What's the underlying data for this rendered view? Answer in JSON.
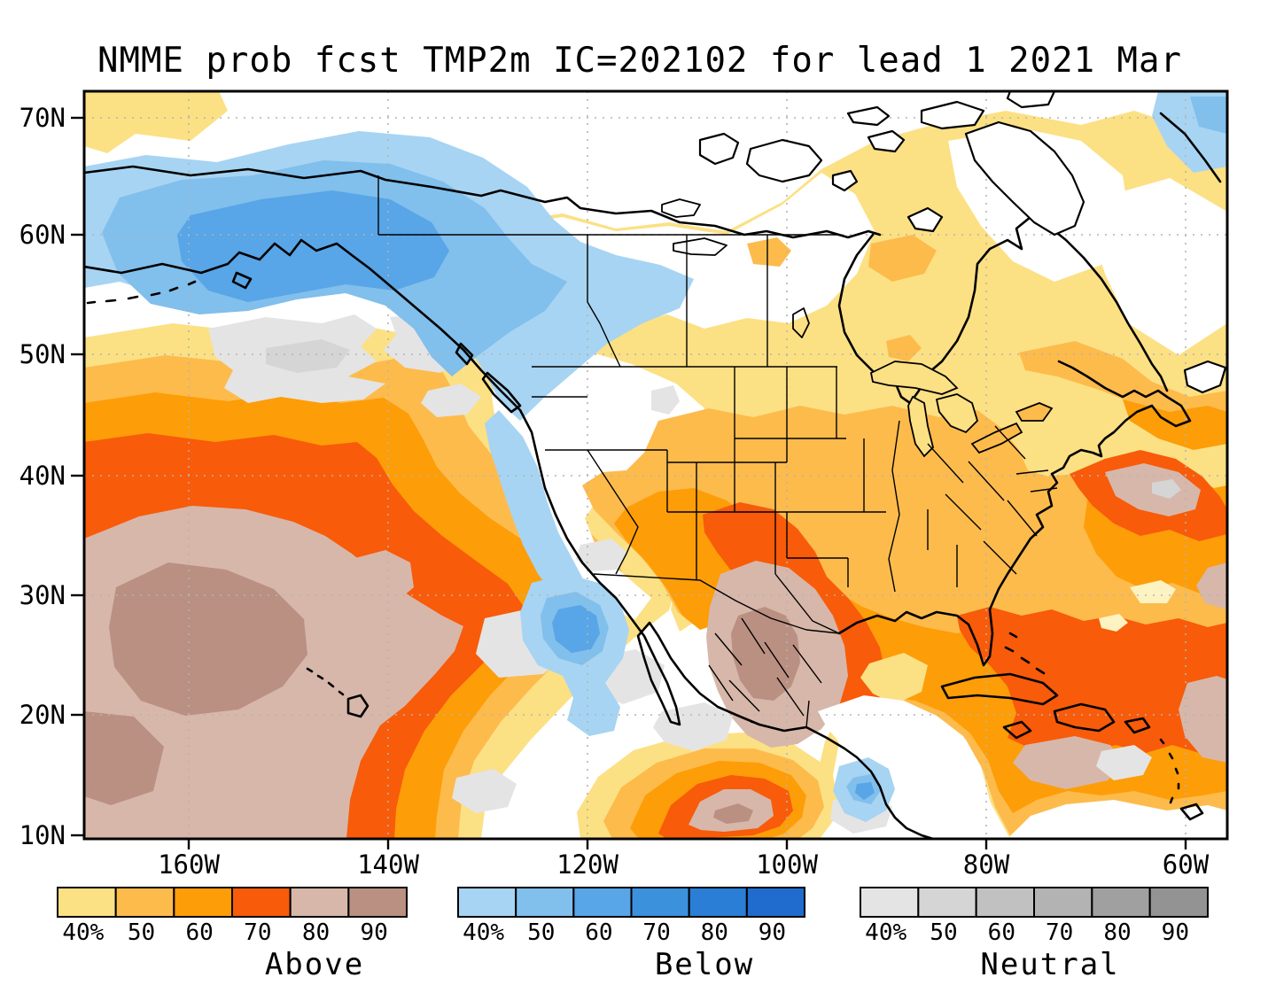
{
  "title": "NMME prob fcst TMP2m IC=202102 for lead 1 2021 Mar",
  "axes": {
    "lat": [
      "70N",
      "60N",
      "50N",
      "40N",
      "30N",
      "20N",
      "10N"
    ],
    "lon": [
      "160W",
      "140W",
      "120W",
      "100W",
      "80W",
      "60W"
    ]
  },
  "colorbars": [
    {
      "label": "Above",
      "ticks": [
        "40%",
        "50",
        "60",
        "70",
        "80",
        "90"
      ],
      "colors": [
        "#FCE084",
        "#FDBB4C",
        "#FD9D08",
        "#F85B09",
        "#D7B7AA",
        "#BA9083"
      ]
    },
    {
      "label": "Below",
      "ticks": [
        "40%",
        "50",
        "60",
        "70",
        "80",
        "90"
      ],
      "colors": [
        "#A7D4F2",
        "#81BFEC",
        "#58A5E7",
        "#3C91DD",
        "#2A7ED5",
        "#1F6CCE"
      ]
    },
    {
      "label": "Neutral",
      "ticks": [
        "40%",
        "50",
        "60",
        "70",
        "80",
        "90"
      ],
      "colors": [
        "#E4E4E4",
        "#D5D5D5",
        "#C1C1C1",
        "#B3B3B3",
        "#A0A0A0",
        "#939393"
      ]
    }
  ],
  "grid_color": "#b4b4b4",
  "frame_color": "#000000"
}
